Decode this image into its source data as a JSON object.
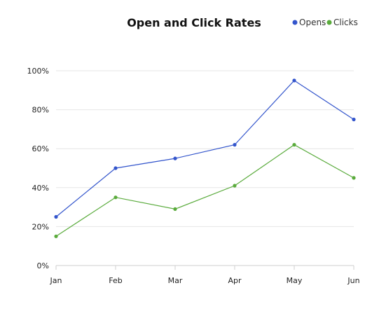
{
  "chart_data": {
    "type": "line",
    "title": "Open and Click Rates",
    "xlabel": "",
    "ylabel": "",
    "categories": [
      "Jan",
      "Feb",
      "Mar",
      "Apr",
      "May",
      "Jun"
    ],
    "ylim": [
      0,
      100
    ],
    "y_ticks": [
      0,
      20,
      40,
      60,
      80,
      100
    ],
    "y_tick_labels": [
      "0%",
      "20%",
      "40%",
      "60%",
      "80%",
      "100%"
    ],
    "grid": true,
    "legend_position": "top-right",
    "series": [
      {
        "name": "Opens",
        "color": "#3355cc",
        "values": [
          25,
          50,
          55,
          62,
          95,
          75
        ]
      },
      {
        "name": "Clicks",
        "color": "#5aab3c",
        "values": [
          15,
          35,
          29,
          41,
          62,
          45
        ]
      }
    ]
  }
}
